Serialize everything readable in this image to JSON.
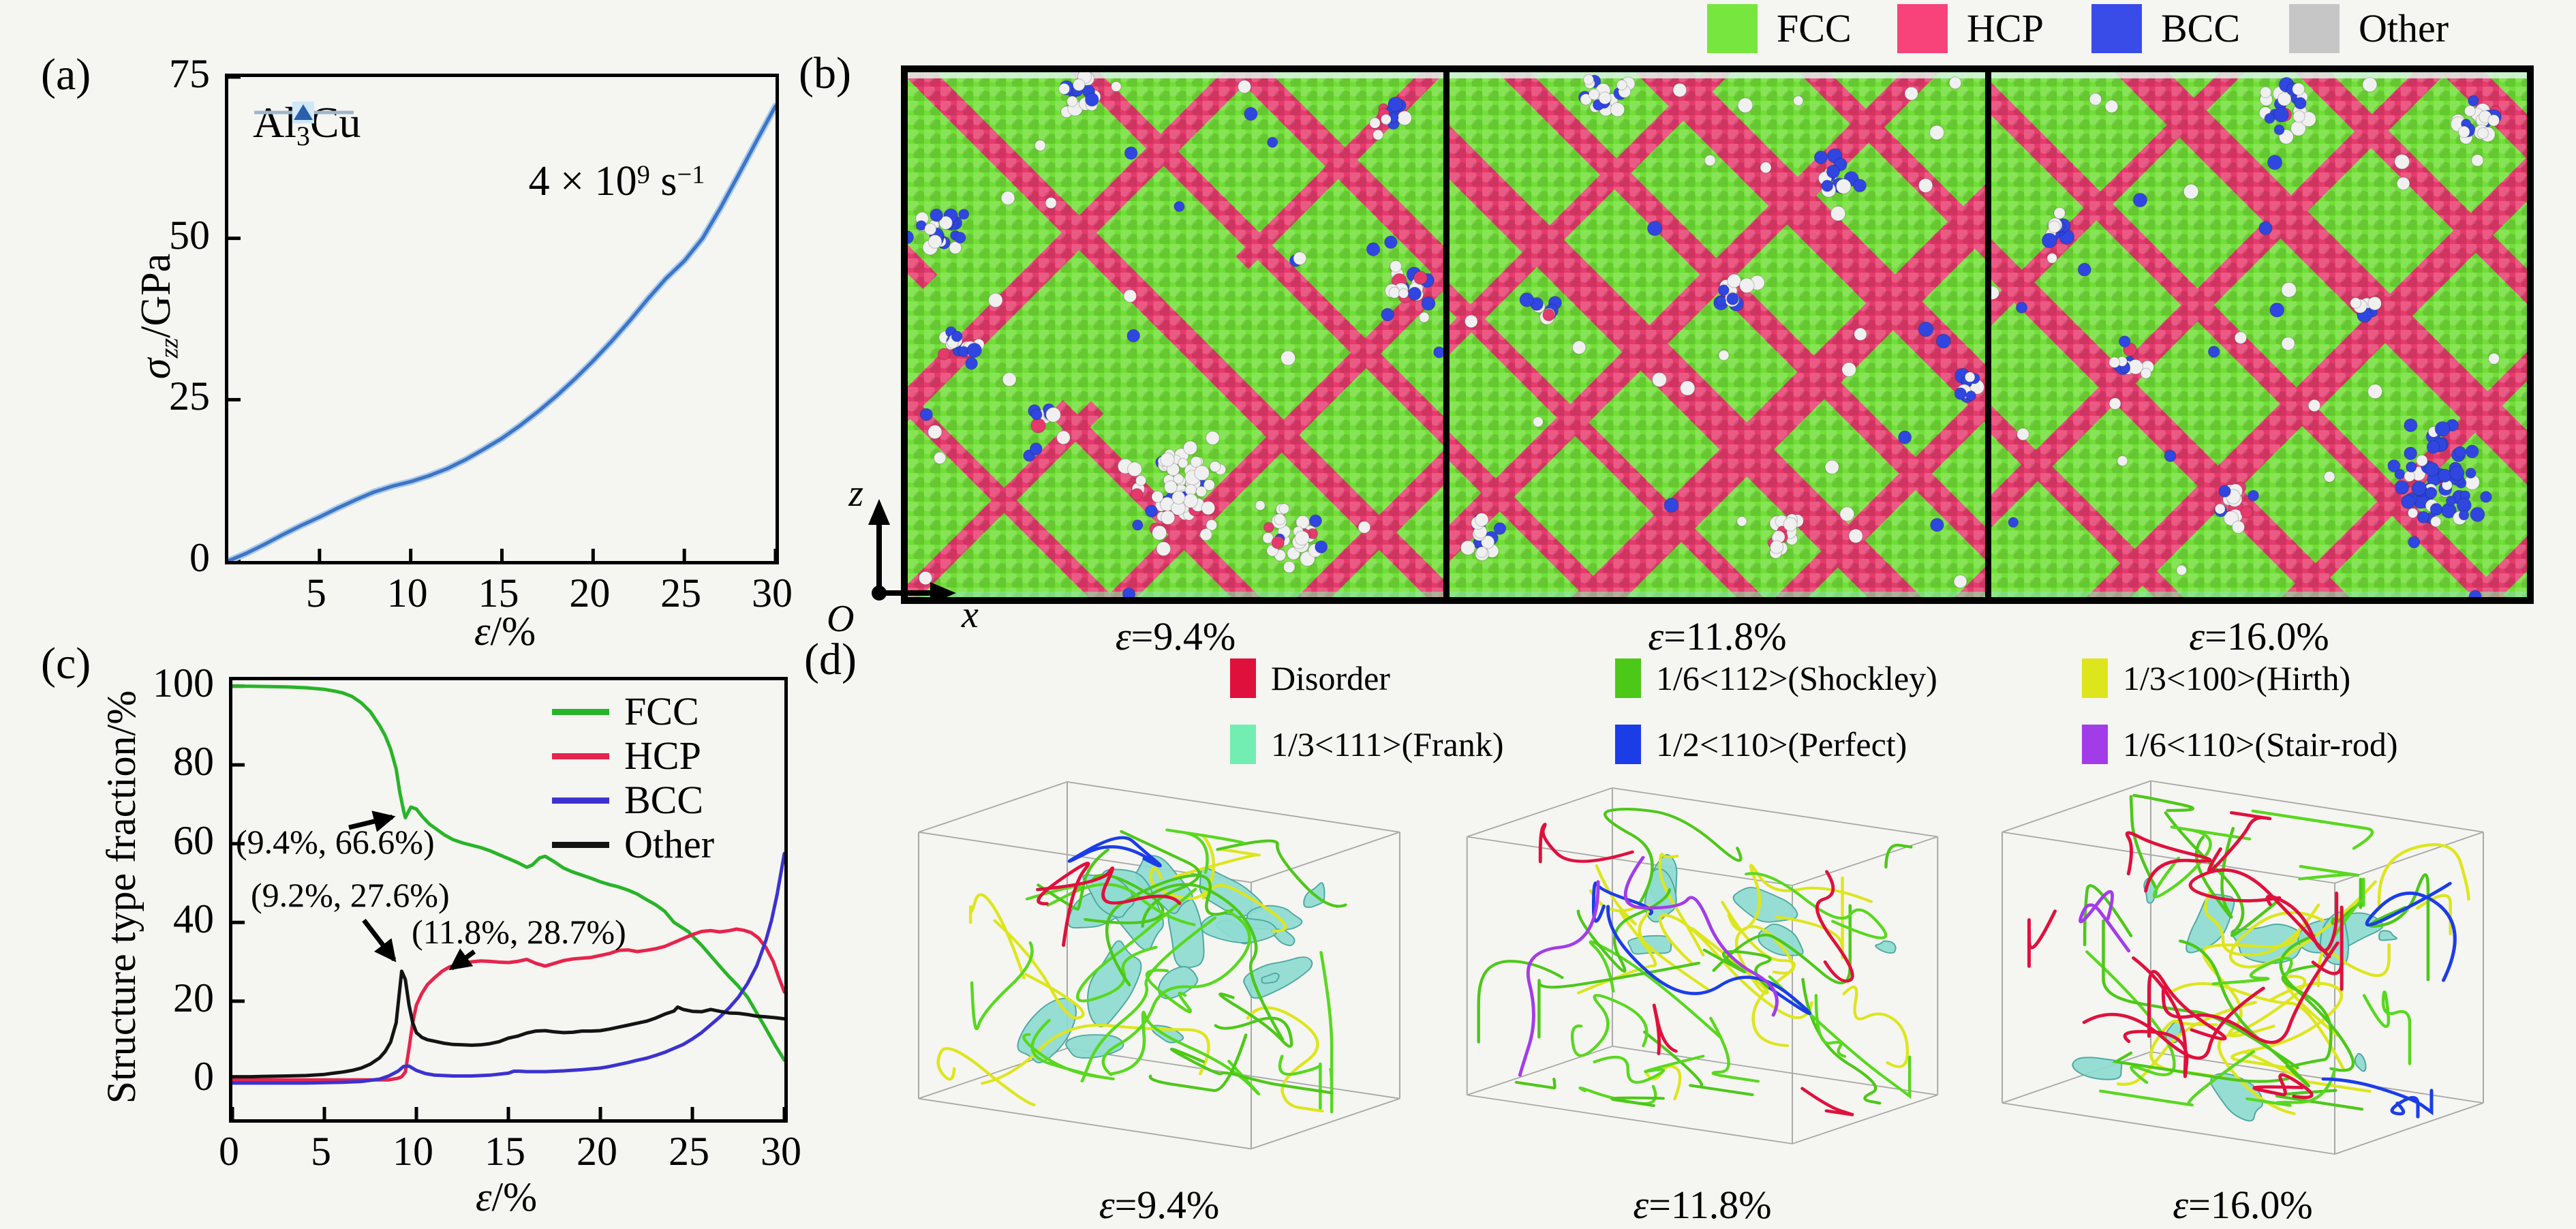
{
  "page": {
    "bg": "#f5f5f2"
  },
  "panel_a": {
    "label": "(a)",
    "series_label": {
      "pre": "Al",
      "sub": "3",
      "post": "Cu"
    },
    "rate": {
      "base": "4 × 10",
      "sup": "9",
      "mid": " s",
      "sup2": "−1"
    },
    "ylabel": {
      "sym": "σ",
      "sub": "zz",
      "rest": "/GPa"
    },
    "xlabel": {
      "sym": "ε",
      "rest": "/%"
    }
  },
  "panel_b": {
    "label": "(b)",
    "legend": [
      {
        "label": "FCC",
        "color": "#77e63e"
      },
      {
        "label": "HCP",
        "color": "#f8437a"
      },
      {
        "label": "BCC",
        "color": "#3a4ce8"
      },
      {
        "label": "Other",
        "color": "#c6c6c6"
      }
    ],
    "colors": {
      "fcc": "#70df36",
      "hcp": "#e63a6c",
      "bcc": "#3046e0",
      "other": "#f0f0f0"
    },
    "axes": {
      "up": "z",
      "right": "x",
      "origin": "O"
    },
    "snapshots": [
      {
        "sym": "ε",
        "rest": "=9.4%"
      },
      {
        "sym": "ε",
        "rest": "=11.8%"
      },
      {
        "sym": "ε",
        "rest": "=16.0%"
      }
    ]
  },
  "panel_c": {
    "label": "(c)",
    "ylabel": "Structure type fraction/%",
    "xlabel": {
      "sym": "ε",
      "rest": "/%"
    }
  },
  "panel_d": {
    "label": "(d)",
    "legend_rows": [
      [
        {
          "label": "Disorder",
          "color": "#e0103c"
        },
        {
          "label": "1/6<112>(Shockley)",
          "color": "#4cc818"
        },
        {
          "label": "1/3<100>(Hirth)",
          "color": "#dde61c"
        }
      ],
      [
        {
          "label": "1/3<111>(Frank)",
          "color": "#72eeb2"
        },
        {
          "label": "1/2<110>(Perfect)",
          "color": "#1b3de8"
        },
        {
          "label": "1/6<110>(Stair-rod)",
          "color": "#a23ce8"
        }
      ]
    ],
    "boxes": [
      {
        "sym": "ε",
        "rest": "=9.4%"
      },
      {
        "sym": "ε",
        "rest": "=11.8%"
      },
      {
        "sym": "ε",
        "rest": "=16.0%"
      }
    ]
  },
  "chart_data": [
    {
      "id": "stress_strain",
      "type": "line",
      "title": "",
      "xlabel": "ε/%",
      "ylabel": "σzz/GPa",
      "xlim": [
        0,
        30
      ],
      "ylim": [
        0,
        75
      ],
      "xticks": [
        5,
        10,
        15,
        20,
        25,
        30
      ],
      "yticks": [
        0,
        25,
        50,
        75
      ],
      "grid": false,
      "legend_position": "top-left",
      "annotations": [
        {
          "text": "4 × 10⁹ s⁻¹"
        }
      ],
      "series": [
        {
          "name": "Al3Cu",
          "color": "#3e74c4",
          "halo": "#a9cbeb",
          "x": [
            0,
            1,
            2,
            3,
            4,
            5,
            6,
            7,
            8,
            9,
            10,
            11,
            12,
            13,
            14,
            15,
            16,
            17,
            18,
            19,
            20,
            21,
            22,
            23,
            24,
            25,
            26,
            27,
            28,
            29,
            30
          ],
          "y": [
            0,
            1.2,
            2.6,
            4.1,
            5.5,
            6.8,
            8.2,
            9.5,
            10.7,
            11.6,
            12.3,
            13.2,
            14.3,
            15.7,
            17.3,
            19,
            21,
            23.2,
            25.6,
            28.2,
            31,
            34,
            37.2,
            40.6,
            43.8,
            46.5,
            50,
            54.8,
            60,
            65.3,
            70.5
          ]
        }
      ]
    },
    {
      "id": "structure_fraction",
      "type": "line",
      "title": "",
      "xlabel": "ε/%",
      "ylabel": "Structure type fraction/%",
      "xlim": [
        0,
        30
      ],
      "ylim": [
        -10,
        101.5
      ],
      "xticks": [
        0,
        5,
        10,
        15,
        20,
        25,
        30
      ],
      "yticks": [
        0,
        20,
        40,
        60,
        80,
        100
      ],
      "grid": false,
      "legend_position": "top-right",
      "annotations": [
        {
          "text": "(9.4%, 66.6%)",
          "target": [
            9.4,
            66.6
          ]
        },
        {
          "text": "(9.2%, 27.6%)",
          "target": [
            9.2,
            27.6
          ]
        },
        {
          "text": "(11.8%, 28.7%)",
          "target": [
            11.8,
            28.7
          ]
        }
      ],
      "series": [
        {
          "name": "FCC",
          "color": "#28b428",
          "x": [
            0,
            1,
            2,
            3,
            4,
            5,
            5.5,
            6,
            6.5,
            7,
            7.5,
            8,
            8.3,
            8.6,
            8.9,
            9.1,
            9.3,
            9.4,
            9.5,
            9.7,
            10,
            10.3,
            10.7,
            11,
            11.5,
            12,
            12.5,
            13,
            13.5,
            14,
            14.5,
            15,
            15.5,
            16,
            16.3,
            16.7,
            17,
            17.5,
            18,
            18.5,
            19,
            19.5,
            20,
            20.5,
            21,
            21.5,
            22,
            22.5,
            23,
            23.5,
            24,
            24.4,
            24.8,
            25,
            25.5,
            26,
            26.5,
            27,
            27.5,
            28,
            28.5,
            29,
            29.5,
            30
          ],
          "y": [
            100,
            100,
            99.9,
            99.8,
            99.6,
            99.2,
            98.8,
            98.3,
            97.4,
            95.8,
            93.5,
            90,
            87.5,
            84,
            79,
            73,
            68.5,
            66.6,
            67.5,
            69.3,
            68.8,
            67,
            65,
            64,
            62.3,
            61,
            60.2,
            59.6,
            59,
            58.2,
            57.2,
            56.2,
            55.2,
            54,
            54.6,
            56.4,
            56.8,
            55.4,
            53.8,
            52.8,
            52,
            51.2,
            50.3,
            49.6,
            49,
            48.2,
            47.2,
            45.8,
            44.5,
            42.8,
            40,
            38.8,
            37.6,
            36.5,
            34.2,
            31.5,
            28.8,
            26.2,
            23.8,
            21,
            17,
            13,
            8.8,
            5
          ]
        },
        {
          "name": "HCP",
          "color": "#e6244c",
          "x": [
            0,
            2,
            4,
            6,
            7,
            8,
            8.5,
            9,
            9.2,
            9.4,
            9.6,
            9.8,
            10,
            10.3,
            10.6,
            11,
            11.4,
            11.8,
            12.2,
            12.6,
            13,
            13.5,
            14,
            14.5,
            15,
            15.5,
            16,
            16.5,
            17,
            17.5,
            18,
            18.5,
            19,
            19.5,
            20,
            20.5,
            21,
            21.5,
            22,
            22.5,
            23,
            23.5,
            24,
            24.5,
            25,
            25.5,
            26,
            26.5,
            27,
            27.4,
            27.8,
            28.2,
            28.6,
            29,
            29.4,
            29.7,
            30
          ],
          "y": [
            0,
            0,
            0,
            0,
            0,
            0,
            0,
            0.4,
            0.8,
            2,
            8,
            14.5,
            19,
            22,
            24.2,
            26,
            27.6,
            28.7,
            29.2,
            29.6,
            30,
            30.2,
            30.1,
            29.9,
            29.8,
            30.1,
            30.6,
            29.6,
            28.9,
            29.6,
            30.3,
            30.7,
            30.9,
            31.1,
            31.6,
            32.1,
            32.9,
            33,
            32.6,
            32.9,
            33.3,
            33.9,
            34.9,
            35.9,
            36.9,
            37.7,
            37.9,
            37.6,
            37.9,
            38.3,
            38,
            37.4,
            36,
            33.6,
            30,
            26,
            22.3
          ]
        },
        {
          "name": "BCC",
          "color": "#3c32cf",
          "x": [
            0,
            2,
            4,
            6,
            7,
            8,
            8.5,
            9,
            9.3,
            9.6,
            10,
            10.5,
            11,
            12,
            13,
            14,
            15,
            15.3,
            15.6,
            16,
            17,
            18,
            19,
            20,
            20.5,
            21,
            21.5,
            22,
            22.5,
            23,
            23.5,
            24,
            24.5,
            25,
            25.5,
            26,
            26.5,
            27,
            27.5,
            28,
            28.5,
            29,
            29.3,
            29.6,
            30
          ],
          "y": [
            -0.8,
            -0.8,
            -0.8,
            -0.6,
            -0.4,
            0.2,
            1,
            2.2,
            3.4,
            3.5,
            2.4,
            1.6,
            1.2,
            1,
            1,
            1.2,
            1.7,
            2.2,
            2.2,
            2.1,
            2.1,
            2.3,
            2.6,
            3,
            3.4,
            3.9,
            4.4,
            5,
            5.5,
            6.2,
            7,
            8,
            9,
            10.4,
            12,
            14,
            16,
            18.3,
            21,
            24.5,
            29,
            35.5,
            40.5,
            47,
            57.5
          ]
        },
        {
          "name": "Other",
          "color": "#141414",
          "x": [
            0,
            1,
            2,
            3,
            4,
            5,
            5.5,
            6,
            6.5,
            7,
            7.5,
            8,
            8.3,
            8.6,
            8.9,
            9.2,
            9.4,
            9.6,
            9.8,
            10,
            10.3,
            10.6,
            11,
            11.5,
            12,
            12.5,
            13,
            13.5,
            14,
            14.5,
            15,
            15.5,
            16,
            16.5,
            17,
            17.5,
            18,
            18.5,
            19,
            19.5,
            20,
            20.5,
            21,
            21.5,
            22,
            22.5,
            23,
            23.5,
            24,
            24.2,
            24.5,
            25,
            25.5,
            26,
            26.5,
            27,
            27.5,
            28,
            28.5,
            29,
            29.5,
            30
          ],
          "y": [
            0.8,
            0.8,
            0.9,
            1,
            1.1,
            1.4,
            1.7,
            2,
            2.4,
            3,
            4,
            5.6,
            7.2,
            9.6,
            14.5,
            27.6,
            25.5,
            19,
            14.5,
            12,
            10.8,
            10.2,
            9.8,
            9.3,
            9,
            8.9,
            8.8,
            8.9,
            9.2,
            9.7,
            10.6,
            11.1,
            11.9,
            12.4,
            12.5,
            12.2,
            12,
            12.1,
            12.4,
            12.4,
            12.5,
            12.9,
            13.4,
            13.9,
            14.4,
            14.9,
            15.7,
            16.7,
            17.5,
            18.5,
            17.9,
            17.4,
            17.3,
            17.9,
            17.4,
            17,
            16.9,
            16.6,
            16.2,
            16,
            15.8,
            15.5
          ]
        }
      ]
    }
  ]
}
